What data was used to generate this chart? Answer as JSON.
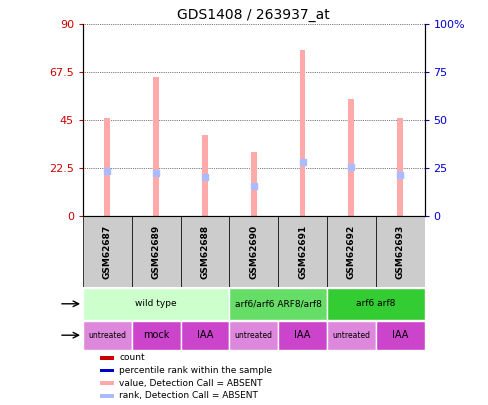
{
  "title": "GDS1408 / 263937_at",
  "samples": [
    "GSM62687",
    "GSM62689",
    "GSM62688",
    "GSM62690",
    "GSM62691",
    "GSM62692",
    "GSM62693"
  ],
  "pink_bar_values": [
    46,
    65,
    38,
    30,
    78,
    55,
    46
  ],
  "blue_dot_values": [
    21,
    20,
    18,
    14,
    25,
    23,
    19
  ],
  "left_yticks": [
    0,
    22.5,
    45,
    67.5,
    90
  ],
  "left_yticklabels": [
    "0",
    "22.5",
    "45",
    "67.5",
    "90"
  ],
  "right_yticks": [
    0,
    25,
    50,
    75,
    100
  ],
  "right_yticklabels": [
    "0",
    "25",
    "50",
    "75",
    "100%"
  ],
  "ylim": [
    0,
    90
  ],
  "genotype_groups": [
    {
      "label": "wild type",
      "start": 0,
      "end": 3,
      "color": "#ccffcc"
    },
    {
      "label": "arf6/arf6 ARF8/arf8",
      "start": 3,
      "end": 5,
      "color": "#66dd66"
    },
    {
      "label": "arf6 arf8",
      "start": 5,
      "end": 7,
      "color": "#33cc33"
    }
  ],
  "agent_groups": [
    {
      "label": "untreated",
      "start": 0,
      "end": 1,
      "color": "#dd88dd"
    },
    {
      "label": "mock",
      "start": 1,
      "end": 2,
      "color": "#cc44cc"
    },
    {
      "label": "IAA",
      "start": 2,
      "end": 3,
      "color": "#cc44cc"
    },
    {
      "label": "untreated",
      "start": 3,
      "end": 4,
      "color": "#dd88dd"
    },
    {
      "label": "IAA",
      "start": 4,
      "end": 5,
      "color": "#cc44cc"
    },
    {
      "label": "untreated",
      "start": 5,
      "end": 6,
      "color": "#dd88dd"
    },
    {
      "label": "IAA",
      "start": 6,
      "end": 7,
      "color": "#cc44cc"
    }
  ],
  "legend_items": [
    {
      "color": "#cc0000",
      "label": "count"
    },
    {
      "color": "#0000cc",
      "label": "percentile rank within the sample"
    },
    {
      "color": "#ffaaaa",
      "label": "value, Detection Call = ABSENT"
    },
    {
      "color": "#aabbff",
      "label": "rank, Detection Call = ABSENT"
    }
  ],
  "bar_width": 0.12,
  "dot_size": 25,
  "pink_color": "#ffaaaa",
  "blue_color": "#aabbff",
  "left_tick_color": "#cc0000",
  "right_tick_color": "#0000cc",
  "sample_box_color": "#cccccc"
}
